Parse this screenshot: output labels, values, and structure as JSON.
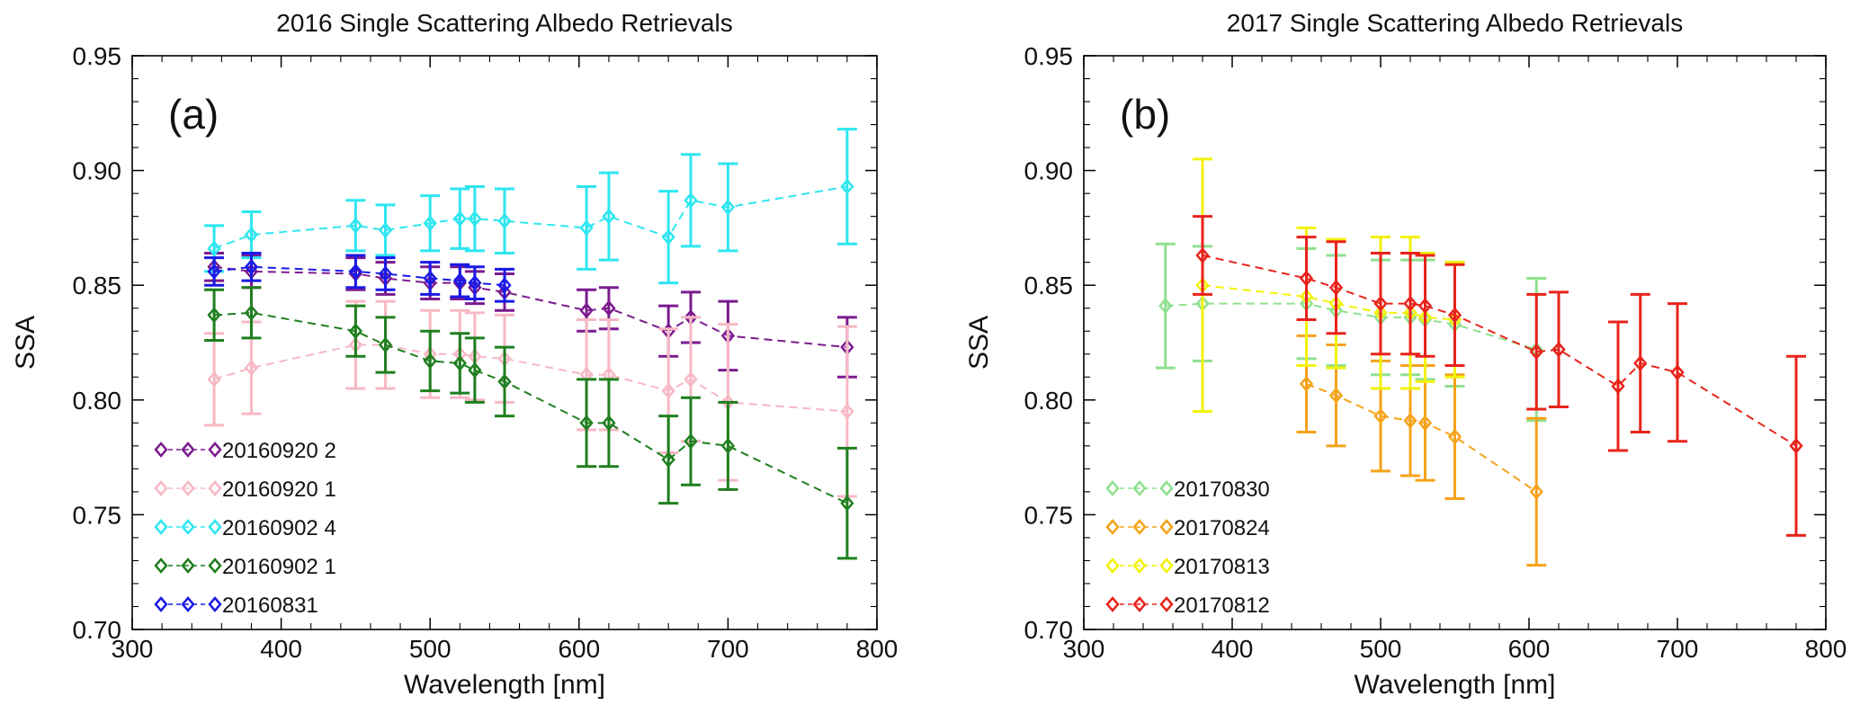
{
  "chart_data": [
    {
      "type": "scatter",
      "title": "2016 Single Scattering Albedo Retrievals",
      "panel_label": "(a)",
      "xlabel": "Wavelength [nm]",
      "ylabel": "SSA",
      "xlim": [
        300,
        800
      ],
      "ylim": [
        0.7,
        0.95
      ],
      "xticks": [
        "300",
        "400",
        "500",
        "600",
        "700",
        "800"
      ],
      "yticks": [
        "0.70",
        "0.75",
        "0.80",
        "0.85",
        "0.90",
        "0.95"
      ],
      "grid": false,
      "legend_position": "bottom-left",
      "series": [
        {
          "name": "20160920 2",
          "color": "#7b1b8f",
          "x": [
            355,
            380,
            450,
            470,
            500,
            520,
            530,
            550,
            605,
            620,
            660,
            675,
            700,
            780
          ],
          "y": [
            0.858,
            0.856,
            0.855,
            0.853,
            0.851,
            0.851,
            0.849,
            0.847,
            0.839,
            0.84,
            0.83,
            0.836,
            0.828,
            0.823
          ],
          "err": [
            0.006,
            0.007,
            0.007,
            0.007,
            0.007,
            0.007,
            0.007,
            0.008,
            0.009,
            0.009,
            0.011,
            0.011,
            0.015,
            0.013
          ]
        },
        {
          "name": "20160920 1",
          "color": "#f7b8c4",
          "x": [
            355,
            380,
            450,
            470,
            500,
            520,
            530,
            550,
            605,
            620,
            660,
            675,
            700,
            780
          ],
          "y": [
            0.809,
            0.814,
            0.824,
            0.824,
            0.82,
            0.82,
            0.819,
            0.818,
            0.811,
            0.811,
            0.804,
            0.809,
            0.799,
            0.795
          ],
          "err": [
            0.02,
            0.02,
            0.019,
            0.019,
            0.019,
            0.019,
            0.019,
            0.019,
            0.024,
            0.024,
            0.027,
            0.027,
            0.034,
            0.037
          ]
        },
        {
          "name": "20160902 4",
          "color": "#2ee6f0",
          "x": [
            355,
            380,
            450,
            470,
            500,
            520,
            530,
            550,
            605,
            620,
            660,
            675,
            700,
            780
          ],
          "y": [
            0.866,
            0.872,
            0.876,
            0.874,
            0.877,
            0.879,
            0.879,
            0.878,
            0.875,
            0.88,
            0.871,
            0.887,
            0.884,
            0.893
          ],
          "err": [
            0.01,
            0.01,
            0.011,
            0.011,
            0.012,
            0.013,
            0.014,
            0.014,
            0.018,
            0.019,
            0.02,
            0.02,
            0.019,
            0.025
          ]
        },
        {
          "name": "20160902 1",
          "color": "#1f7f1f",
          "x": [
            355,
            380,
            450,
            470,
            500,
            520,
            530,
            550,
            605,
            620,
            660,
            675,
            700,
            780
          ],
          "y": [
            0.837,
            0.838,
            0.83,
            0.824,
            0.817,
            0.816,
            0.813,
            0.808,
            0.79,
            0.79,
            0.774,
            0.782,
            0.78,
            0.755
          ],
          "err": [
            0.011,
            0.011,
            0.011,
            0.012,
            0.013,
            0.013,
            0.014,
            0.015,
            0.019,
            0.019,
            0.019,
            0.019,
            0.019,
            0.024
          ]
        },
        {
          "name": "20160831",
          "color": "#1a1ae6",
          "x": [
            355,
            380,
            450,
            470,
            500,
            520,
            530,
            550
          ],
          "y": [
            0.856,
            0.858,
            0.856,
            0.855,
            0.853,
            0.852,
            0.851,
            0.85
          ],
          "err": [
            0.006,
            0.006,
            0.007,
            0.007,
            0.007,
            0.007,
            0.007,
            0.007
          ]
        }
      ]
    },
    {
      "type": "scatter",
      "title": "2017 Single Scattering Albedo Retrievals",
      "panel_label": "(b)",
      "xlabel": "Wavelength [nm]",
      "ylabel": "SSA",
      "xlim": [
        300,
        800
      ],
      "ylim": [
        0.7,
        0.95
      ],
      "xticks": [
        "300",
        "400",
        "500",
        "600",
        "700",
        "800"
      ],
      "yticks": [
        "0.70",
        "0.75",
        "0.80",
        "0.85",
        "0.90",
        "0.95"
      ],
      "grid": false,
      "legend_position": "bottom-left",
      "series": [
        {
          "name": "20170830",
          "color": "#8fe08f",
          "x": [
            355,
            380,
            450,
            470,
            500,
            520,
            530,
            550,
            605
          ],
          "y": [
            0.841,
            0.842,
            0.842,
            0.839,
            0.836,
            0.836,
            0.835,
            0.833,
            0.822
          ],
          "err": [
            0.027,
            0.025,
            0.024,
            0.024,
            0.025,
            0.025,
            0.026,
            0.027,
            0.031
          ]
        },
        {
          "name": "20170824",
          "color": "#f5a31a",
          "x": [
            450,
            470,
            500,
            520,
            530,
            550,
            605
          ],
          "y": [
            0.807,
            0.802,
            0.793,
            0.791,
            0.79,
            0.784,
            0.76
          ],
          "err": [
            0.021,
            0.022,
            0.024,
            0.024,
            0.025,
            0.027,
            0.032
          ]
        },
        {
          "name": "20170813",
          "color": "#f2f20a",
          "x": [
            380,
            450,
            470,
            500,
            520,
            530,
            550
          ],
          "y": [
            0.85,
            0.845,
            0.842,
            0.838,
            0.838,
            0.836,
            0.835
          ],
          "err": [
            0.055,
            0.03,
            0.028,
            0.033,
            0.033,
            0.028,
            0.025
          ]
        },
        {
          "name": "20170812",
          "color": "#e8231a",
          "x": [
            380,
            450,
            470,
            500,
            520,
            530,
            550,
            605,
            620,
            660,
            675,
            700,
            780
          ],
          "y": [
            0.863,
            0.853,
            0.849,
            0.842,
            0.842,
            0.841,
            0.837,
            0.821,
            0.822,
            0.806,
            0.816,
            0.812,
            0.78
          ],
          "err": [
            0.017,
            0.018,
            0.02,
            0.022,
            0.022,
            0.022,
            0.022,
            0.025,
            0.025,
            0.028,
            0.03,
            0.03,
            0.039
          ]
        }
      ]
    }
  ]
}
